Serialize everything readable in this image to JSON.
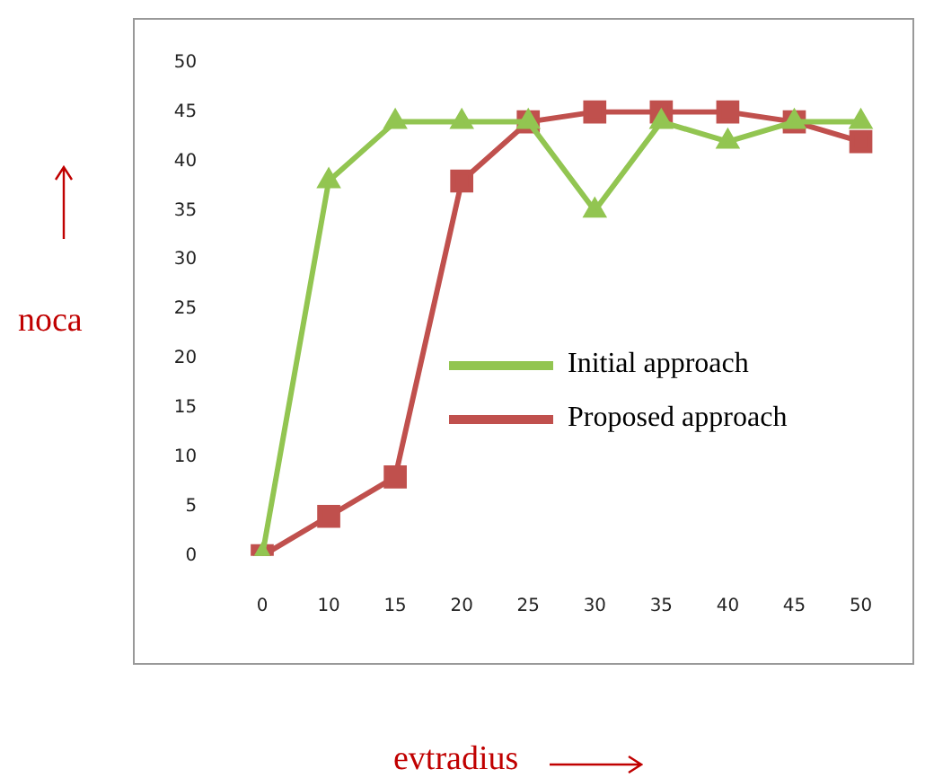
{
  "chart_data": {
    "type": "line",
    "xlabel": "evtradius",
    "ylabel": "noca",
    "categories": [
      "0",
      "10",
      "15",
      "20",
      "25",
      "30",
      "35",
      "40",
      "45",
      "50"
    ],
    "series": [
      {
        "name": "Initial approach",
        "color": "#92c551",
        "marker": "triangle",
        "values": [
          0,
          38,
          44,
          44,
          44,
          35,
          44,
          42,
          44,
          44
        ]
      },
      {
        "name": "Proposed approach",
        "color": "#c0504d",
        "marker": "square",
        "values": [
          0,
          4,
          8,
          38,
          44,
          45,
          45,
          45,
          44,
          42
        ]
      }
    ],
    "ylim": [
      0,
      50
    ],
    "yticks": [
      0,
      5,
      10,
      15,
      20,
      25,
      30,
      35,
      40,
      45,
      50
    ],
    "grid": false,
    "legend": "right"
  }
}
